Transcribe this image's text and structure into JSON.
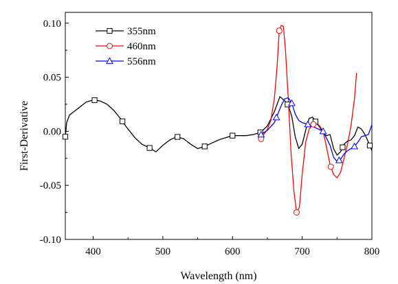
{
  "chart_data": {
    "type": "line",
    "title": "",
    "xlabel": "Wavelength (nm)",
    "ylabel": "First-Derivative",
    "xlim": [
      360,
      800
    ],
    "ylim": [
      -0.1,
      0.11
    ],
    "x_ticks": [
      400,
      500,
      600,
      700,
      800
    ],
    "x_tick_labels": [
      "400",
      "500",
      "600",
      "700",
      "800"
    ],
    "y_ticks": [
      -0.1,
      -0.05,
      0.0,
      0.05,
      0.1
    ],
    "y_tick_labels": [
      "-0.10",
      "-0.05",
      "0.00",
      "0.05",
      "0.10"
    ],
    "grid": false,
    "legend_position": "top-left",
    "series": [
      {
        "name": "355nm",
        "color": "#000000",
        "marker": "square",
        "x": [
          360,
          362,
          366,
          372,
          380,
          390,
          400,
          410,
          420,
          430,
          440,
          450,
          460,
          470,
          480,
          490,
          500,
          510,
          520,
          530,
          540,
          550,
          560,
          570,
          580,
          590,
          600,
          610,
          620,
          630,
          640,
          650,
          660,
          668,
          675,
          680,
          685,
          690,
          695,
          700,
          705,
          710,
          715,
          720,
          725,
          730,
          735,
          740,
          745,
          750,
          755,
          760,
          765,
          770,
          775,
          780,
          785,
          790,
          795,
          800
        ],
        "y": [
          -0.005,
          0.008,
          0.015,
          0.018,
          0.022,
          0.027,
          0.029,
          0.028,
          0.025,
          0.019,
          0.011,
          0.002,
          -0.006,
          -0.012,
          -0.015,
          -0.019,
          -0.013,
          -0.008,
          -0.005,
          -0.007,
          -0.012,
          -0.016,
          -0.014,
          -0.011,
          -0.008,
          -0.006,
          -0.004,
          -0.004,
          -0.004,
          -0.003,
          -0.001,
          0.005,
          0.018,
          0.032,
          0.028,
          0.024,
          0.014,
          -0.005,
          -0.016,
          -0.012,
          0.001,
          0.012,
          0.013,
          0.008,
          0.004,
          -0.002,
          -0.004,
          -0.003,
          -0.016,
          -0.022,
          -0.019,
          -0.012,
          -0.009,
          -0.008,
          -0.004,
          0.004,
          0.002,
          -0.003,
          -0.01,
          -0.018
        ],
        "marker_x": [
          360,
          402,
          442,
          481,
          521,
          560,
          600,
          640,
          679,
          719,
          758,
          797
        ]
      },
      {
        "name": "460nm",
        "color": "#ff0000",
        "marker": "circle",
        "x": [
          641,
          650,
          655,
          660,
          664,
          667,
          670,
          673,
          676,
          680,
          684,
          688,
          692,
          696,
          700,
          705,
          710,
          715,
          720,
          725,
          730,
          735,
          740,
          745,
          750,
          755,
          760,
          765,
          770,
          775,
          778
        ],
        "y": [
          -0.007,
          0.002,
          0.01,
          0.03,
          0.06,
          0.093,
          0.098,
          0.097,
          0.075,
          0.03,
          -0.02,
          -0.055,
          -0.075,
          -0.07,
          -0.04,
          -0.01,
          0.002,
          0.006,
          0.008,
          0.005,
          0.0,
          -0.015,
          -0.031,
          -0.04,
          -0.043,
          -0.038,
          -0.025,
          -0.012,
          0.005,
          0.03,
          0.054
        ],
        "marker_x": [
          641,
          667,
          692,
          716,
          741
        ]
      },
      {
        "name": "556nm",
        "color": "#0000ff",
        "marker": "triangle",
        "x": [
          641,
          650,
          660,
          665,
          670,
          675,
          680,
          685,
          690,
          695,
          700,
          710,
          720,
          730,
          740,
          745,
          750,
          755,
          760,
          765,
          770,
          775,
          780,
          785,
          790,
          795,
          800
        ],
        "y": [
          -0.003,
          0.001,
          0.008,
          0.016,
          0.024,
          0.03,
          0.031,
          0.026,
          0.016,
          0.01,
          0.008,
          0.006,
          0.003,
          0.0,
          -0.013,
          -0.024,
          -0.028,
          -0.026,
          -0.021,
          -0.018,
          -0.016,
          -0.014,
          -0.01,
          -0.005,
          -0.004,
          -0.003,
          0.006
        ],
        "marker_x": [
          641,
          663,
          685,
          708,
          730,
          753,
          775
        ]
      }
    ]
  }
}
